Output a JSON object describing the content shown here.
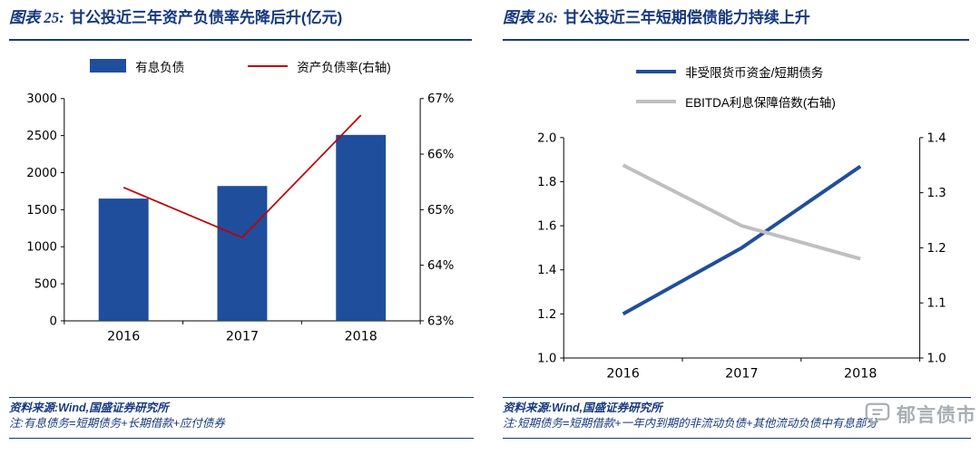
{
  "panels": [
    {
      "title_prefix": "图表 25:",
      "title_text": "甘公投近三年资产负债率先降后升(亿元)",
      "source": "资料来源:Wind,国盛证券研究所",
      "note": "注:有息债务=短期债务+长期借款+应付债券"
    },
    {
      "title_prefix": "图表 26:",
      "title_text": "甘公投近三年短期偿债能力持续上升",
      "source": "资料来源:Wind,国盛证券研究所",
      "note": "注:短期债务=短期借款+一年内到期的非流动负债+其他流动负债中有息部分"
    }
  ],
  "watermark": {
    "text": "郁言债市"
  },
  "colors": {
    "brand_blue": "#1F4E9C",
    "title_blue": "#17397F",
    "red": "#C00000",
    "gray": "#BFBFBF",
    "axis_black": "#000000",
    "watermark_gray": "#A9AEB3"
  },
  "chart_data": [
    {
      "type": "bar",
      "title": "图表 25: 甘公投近三年资产负债率先降后升(亿元)",
      "categories": [
        "2016",
        "2017",
        "2018"
      ],
      "series": [
        {
          "name": "有息负债",
          "type": "bar",
          "axis": "left",
          "color": "#1F4E9C",
          "values": [
            1650,
            1820,
            2510
          ]
        },
        {
          "name": "资产负债率(右轴)",
          "type": "line",
          "axis": "right",
          "color": "#C00000",
          "width": 1.8,
          "values": [
            65.4,
            64.5,
            66.7
          ]
        }
      ],
      "left_axis": {
        "min": 0,
        "max": 3000,
        "labels": [
          "3000",
          "2500",
          "2000",
          "1500",
          "1000",
          "500",
          "0"
        ]
      },
      "right_axis": {
        "min": 63,
        "max": 67,
        "labels": [
          "67%",
          "66%",
          "65%",
          "64%",
          "63%"
        ]
      },
      "grid": false,
      "legend_position": "top"
    },
    {
      "type": "line",
      "title": "图表 26: 甘公投近三年短期偿债能力持续上升",
      "categories": [
        "2016",
        "2017",
        "2018"
      ],
      "series": [
        {
          "name": "非受限货币资金/短期债务",
          "type": "line",
          "axis": "left",
          "color": "#1F4E9C",
          "width": 4,
          "values": [
            1.2,
            1.5,
            1.87
          ]
        },
        {
          "name": "EBITDA利息保障倍数(右轴)",
          "type": "line",
          "axis": "right",
          "color": "#BFBFBF",
          "width": 4,
          "values": [
            1.35,
            1.24,
            1.18
          ]
        }
      ],
      "left_axis": {
        "min": 1.0,
        "max": 2.0,
        "labels": [
          "2.0",
          "1.8",
          "1.6",
          "1.4",
          "1.2",
          "1.0"
        ]
      },
      "right_axis": {
        "min": 1.0,
        "max": 1.4,
        "labels": [
          "1.4",
          "1.3",
          "1.2",
          "1.1",
          "1.0"
        ]
      },
      "grid": false,
      "legend_position": "top"
    }
  ]
}
